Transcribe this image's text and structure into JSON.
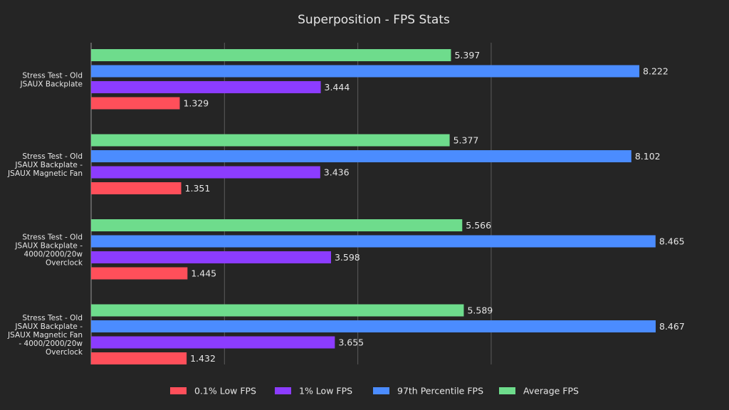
{
  "chart_data": {
    "type": "bar",
    "orientation": "horizontal",
    "title": "Superposition - FPS Stats",
    "xlabel": "",
    "ylabel": "",
    "xlim": [
      0,
      10
    ],
    "grid": true,
    "legend_position": "bottom-center",
    "categories": [
      [
        "Stress Test - Old",
        "JSAUX Backplate"
      ],
      [
        "Stress Test - Old",
        "JSAUX Backplate -",
        "JSAUX Magnetic Fan"
      ],
      [
        "Stress Test - Old",
        "JSAUX Backplate -",
        "4000/2000/20w",
        "Overclock"
      ],
      [
        "Stress Test - Old",
        "JSAUX Backplate -",
        "JSAUX Magnetic Fan",
        "- 4000/2000/20w",
        "Overclock"
      ]
    ],
    "series": [
      {
        "name": "0.1% Low FPS",
        "color": "#ff4f5a",
        "values": [
          1.329,
          1.351,
          1.445,
          1.432
        ],
        "labels": [
          "1.329",
          "1.351",
          "1.445",
          "1.432"
        ]
      },
      {
        "name": "1% Low FPS",
        "color": "#8c3cff",
        "values": [
          3.444,
          3.436,
          3.598,
          3.655
        ],
        "labels": [
          "3.444",
          "3.436",
          "3.598",
          "3.655"
        ]
      },
      {
        "name": "97th Percentile FPS",
        "color": "#4b8cff",
        "values": [
          8.222,
          8.102,
          8.465,
          8.467
        ],
        "labels": [
          "8.222",
          "8.102",
          "8.465",
          "8.467"
        ]
      },
      {
        "name": "Average FPS",
        "color": "#6edc8c",
        "values": [
          5.397,
          5.377,
          5.566,
          5.589
        ],
        "labels": [
          "5.397",
          "5.377",
          "5.566",
          "5.589"
        ]
      }
    ],
    "draw_order_top_to_bottom": [
      "Average FPS",
      "97th Percentile FPS",
      "1% Low FPS",
      "0.1% Low FPS"
    ]
  }
}
